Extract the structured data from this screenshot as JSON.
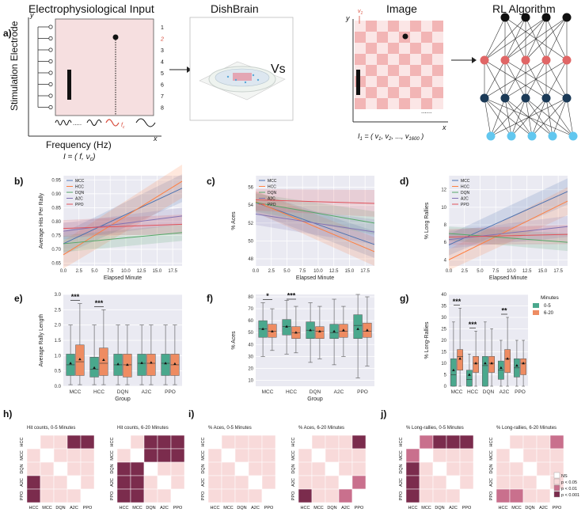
{
  "panel_a": {
    "label": "a)",
    "elec_title": "Electrophysiological Input",
    "ylabel": "Stimulation Electrode",
    "xlabel": "Frequency (Hz)",
    "formula": "I = ( f, ν",
    "formula_sub": "c",
    "formula_end": ")",
    "y_axis": "y",
    "x_axis": "x",
    "electrodes": [
      "1",
      "2",
      "3",
      "4",
      "5",
      "6",
      "7",
      "8"
    ],
    "highlight_electrode_index": 1,
    "fc_label": "f",
    "fc_sub": "c",
    "dish_title": "DishBrain",
    "vs": "Vs",
    "image_title": "Image",
    "v1_label": "v",
    "v1_sub": "1",
    "image_formula": "I",
    "image_formula_sub": "1",
    "image_formula_rest": " = ( v",
    "image_formula_v1": "1",
    "image_formula_mid": ", v",
    "image_formula_v2": "2",
    "image_formula_dots": ", ..., v",
    "image_formula_vn": "1600",
    "image_formula_end": " )",
    "rl_title": "RL Algorithm",
    "colors": {
      "pink_bg": "#f6dfe0",
      "node_red": "#e06666",
      "node_dark": "#1b3a57",
      "node_light": "#62c7ef",
      "check_dark": "#f2b5b5",
      "check_light": "#fbe6e6"
    }
  },
  "chart_data": [
    {
      "id": "b",
      "label": "b)",
      "type": "line",
      "xlabel": "Elapsed Minute",
      "ylabel": "Average Hits Per Rally",
      "xticks": [
        "0.0",
        "2.5",
        "5.0",
        "7.5",
        "10.0",
        "12.5",
        "15.0",
        "17.5"
      ],
      "xlim": [
        0,
        19
      ],
      "ylim": [
        0.64,
        0.965
      ],
      "yticks": [
        "0.65",
        "0.70",
        "0.75",
        "0.80",
        "0.85",
        "0.90",
        "0.95"
      ],
      "legend": [
        "MCC",
        "HCC",
        "DQN",
        "A2C",
        "PPO"
      ],
      "series": [
        {
          "name": "MCC",
          "color": "#4c72b0",
          "start": 0.72,
          "end": 0.92,
          "band0": 0.04,
          "band1": 0.05
        },
        {
          "name": "HCC",
          "color": "#ff7f40",
          "start": 0.68,
          "end": 0.945,
          "band0": 0.05,
          "band1": 0.06
        },
        {
          "name": "DQN",
          "color": "#55a868",
          "start": 0.72,
          "end": 0.76,
          "band0": 0.03,
          "band1": 0.03
        },
        {
          "name": "A2C",
          "color": "#8172b3",
          "start": 0.765,
          "end": 0.82,
          "band0": 0.03,
          "band1": 0.03
        },
        {
          "name": "PPO",
          "color": "#e0525b",
          "start": 0.775,
          "end": 0.79,
          "band0": 0.03,
          "band1": 0.035
        }
      ]
    },
    {
      "id": "c",
      "label": "c)",
      "type": "line",
      "xlabel": "Elapsed Minute",
      "ylabel": "% Aces",
      "xticks": [
        "0.0",
        "2.5",
        "5.0",
        "7.5",
        "10.0",
        "12.5",
        "15.0",
        "17.5"
      ],
      "xlim": [
        0,
        19
      ],
      "ylim": [
        47.2,
        57.3
      ],
      "yticks": [
        "48",
        "50",
        "52",
        "54",
        "56"
      ],
      "legend": [
        "MCC",
        "HCC",
        "DQN",
        "A2C",
        "PPO"
      ],
      "series": [
        {
          "name": "MCC",
          "color": "#4c72b0",
          "start": 54.3,
          "end": 49.6,
          "band0": 1.2,
          "band1": 1.5
        },
        {
          "name": "HCC",
          "color": "#ff7f40",
          "start": 54.4,
          "end": 48.8,
          "band0": 1.2,
          "band1": 1.6
        },
        {
          "name": "DQN",
          "color": "#55a868",
          "start": 54.3,
          "end": 52.0,
          "band0": 1.0,
          "band1": 1.3
        },
        {
          "name": "A2C",
          "color": "#8172b3",
          "start": 53.0,
          "end": 51.0,
          "band0": 1.2,
          "band1": 1.4
        },
        {
          "name": "PPO",
          "color": "#e0525b",
          "start": 54.6,
          "end": 54.2,
          "band0": 1.2,
          "band1": 1.5
        }
      ]
    },
    {
      "id": "d",
      "label": "d)",
      "type": "line",
      "xlabel": "Elapsed Minute",
      "ylabel": "% Long Rallies",
      "xticks": [
        "0.0",
        "2.5",
        "5.0",
        "7.5",
        "10.0",
        "12.5",
        "15.0",
        "17.5"
      ],
      "xlim": [
        0,
        19
      ],
      "ylim": [
        3.3,
        13.6
      ],
      "yticks": [
        "4",
        "6",
        "8",
        "10",
        "12"
      ],
      "legend": [
        "MCC",
        "HCC",
        "DQN",
        "A2C",
        "PPO"
      ],
      "series": [
        {
          "name": "MCC",
          "color": "#4c72b0",
          "start": 5.7,
          "end": 11.8,
          "band0": 1.2,
          "band1": 1.5
        },
        {
          "name": "HCC",
          "color": "#ff7f40",
          "start": 4.0,
          "end": 10.7,
          "band0": 1.2,
          "band1": 1.6
        },
        {
          "name": "DQN",
          "color": "#55a868",
          "start": 7.0,
          "end": 6.0,
          "band0": 0.8,
          "band1": 1.0
        },
        {
          "name": "A2C",
          "color": "#8172b3",
          "start": 6.3,
          "end": 7.8,
          "band0": 1.0,
          "band1": 1.2
        },
        {
          "name": "PPO",
          "color": "#e0525b",
          "start": 6.6,
          "end": 6.9,
          "band0": 0.9,
          "band1": 1.1
        }
      ]
    },
    {
      "id": "e",
      "label": "e)",
      "type": "box",
      "xlabel": "Group",
      "ylabel": "Average Rally Length",
      "categories": [
        "MCC",
        "HCC",
        "DQN",
        "A2C",
        "PPO"
      ],
      "ylim": [
        0,
        3.0
      ],
      "yticks": [
        "0.0",
        "0.5",
        "1.0",
        "1.5",
        "2.0",
        "2.5",
        "3.0"
      ],
      "boxes": [
        [
          [
            0.05,
            0.35,
            0.7,
            1.05,
            2.0,
            0.75
          ],
          [
            0.05,
            0.35,
            0.8,
            1.35,
            2.7,
            0.88
          ]
        ],
        [
          [
            0.05,
            0.3,
            0.55,
            0.95,
            2.0,
            0.6
          ],
          [
            0.05,
            0.35,
            0.75,
            1.25,
            2.5,
            0.86
          ]
        ],
        [
          [
            0.05,
            0.35,
            0.7,
            1.05,
            2.0,
            0.72
          ],
          [
            0.05,
            0.3,
            0.7,
            1.05,
            2.0,
            0.7
          ]
        ],
        [
          [
            0.05,
            0.35,
            0.75,
            1.05,
            2.0,
            0.76
          ],
          [
            0.05,
            0.35,
            0.75,
            1.05,
            2.0,
            0.77
          ]
        ],
        [
          [
            0.05,
            0.35,
            0.75,
            1.05,
            2.0,
            0.75
          ],
          [
            0.05,
            0.35,
            0.7,
            1.05,
            2.0,
            0.73
          ]
        ]
      ],
      "sig": [
        {
          "cat": 0,
          "text": "***"
        },
        {
          "cat": 1,
          "text": "***"
        }
      ],
      "legend_title": "",
      "legend": []
    },
    {
      "id": "f",
      "label": "f)",
      "type": "box",
      "xlabel": "Group",
      "ylabel": "% Aces",
      "categories": [
        "MCC",
        "HCC",
        "DQN",
        "A2C",
        "PPO"
      ],
      "ylim": [
        5,
        82
      ],
      "yticks": [
        "10",
        "20",
        "30",
        "40",
        "50",
        "60",
        "70",
        "80"
      ],
      "boxes": [
        [
          [
            30,
            46,
            53,
            60,
            75,
            53
          ],
          [
            35,
            46,
            51,
            57,
            70,
            51
          ]
        ],
        [
          [
            32,
            48,
            55,
            61,
            77,
            55
          ],
          [
            33,
            45,
            50,
            55,
            72,
            50
          ]
        ],
        [
          [
            25,
            45,
            52,
            59,
            75,
            52
          ],
          [
            28,
            45,
            51,
            55,
            72,
            51
          ]
        ],
        [
          [
            23,
            45,
            50,
            57,
            78,
            51
          ],
          [
            30,
            46,
            51,
            57,
            72,
            52
          ]
        ],
        [
          [
            12,
            45,
            56,
            65,
            82,
            53
          ],
          [
            22,
            46,
            51,
            58,
            80,
            52
          ]
        ]
      ],
      "sig": [
        {
          "cat": 0,
          "text": "*"
        },
        {
          "cat": 1,
          "text": "***"
        }
      ],
      "legend_title": "",
      "legend": []
    },
    {
      "id": "g",
      "label": "g)",
      "type": "box",
      "xlabel": "",
      "ylabel": "% Long-Rallies",
      "categories": [
        "MCC",
        "HCC",
        "DQN",
        "A2C",
        "PPO"
      ],
      "ylim": [
        0,
        40
      ],
      "yticks": [
        "0",
        "5",
        "10",
        "15",
        "20",
        "25",
        "30",
        "35",
        "40"
      ],
      "boxes": [
        [
          [
            0,
            0,
            5,
            12,
            28,
            7
          ],
          [
            0,
            7,
            13,
            16,
            34,
            12
          ]
        ],
        [
          [
            0,
            0,
            3,
            7,
            14,
            5
          ],
          [
            0,
            6,
            10,
            13,
            24,
            10
          ]
        ],
        [
          [
            0,
            0,
            9,
            13,
            28,
            10
          ],
          [
            0,
            6,
            10,
            13,
            25,
            10
          ]
        ],
        [
          [
            0,
            3,
            7,
            11,
            20,
            8
          ],
          [
            0,
            6,
            12,
            16,
            30,
            12
          ]
        ],
        [
          [
            0,
            4,
            8,
            12,
            20,
            9
          ],
          [
            0,
            5,
            10,
            12,
            20,
            10
          ]
        ]
      ],
      "sig": [
        {
          "cat": 0,
          "text": "***"
        },
        {
          "cat": 1,
          "text": "***"
        },
        {
          "cat": 3,
          "text": "**"
        }
      ],
      "legend_title": "Minutes",
      "legend": [
        "0-5",
        "6-20"
      ]
    }
  ],
  "box_colors": [
    "#4aa88d",
    "#ee8c62"
  ],
  "heatmaps": {
    "h_label": "h)",
    "i_label": "i)",
    "j_label": "j)",
    "sig_colors": [
      "#ffffff",
      "#f8dada",
      "#c9708d",
      "#7b2c4d"
    ],
    "legend": [
      "NS",
      "p < 0.05",
      "p < 0.01",
      "p < 0.001"
    ],
    "maps": [
      {
        "title": "Hit counts, 0-5 Minutes",
        "rows": [
          "HCC",
          "MCC",
          "DQN",
          "A2C",
          "PPO"
        ],
        "cols": [
          "HCC",
          "MCC",
          "DQN",
          "A2C",
          "PPO"
        ],
        "cells": [
          [
            0,
            1,
            1,
            3,
            3
          ],
          [
            1,
            0,
            1,
            1,
            1
          ],
          [
            1,
            1,
            0,
            1,
            1
          ],
          [
            3,
            1,
            1,
            0,
            1
          ],
          [
            3,
            1,
            1,
            1,
            0
          ]
        ]
      },
      {
        "title": "Hit counts, 6-20 Minutes",
        "rows": [
          "HCC",
          "MCC",
          "DQN",
          "A2C",
          "PPO"
        ],
        "cols": [
          "HCC",
          "MCC",
          "DQN",
          "A2C",
          "PPO"
        ],
        "cells": [
          [
            0,
            1,
            3,
            3,
            3
          ],
          [
            1,
            0,
            3,
            3,
            3
          ],
          [
            3,
            3,
            0,
            1,
            1
          ],
          [
            3,
            3,
            1,
            0,
            1
          ],
          [
            3,
            3,
            1,
            1,
            0
          ]
        ]
      },
      {
        "title": "% Aces, 0-5 Minutes",
        "rows": [
          "HCC",
          "MCC",
          "DQN",
          "A2C",
          "PPO"
        ],
        "cols": [
          "HCC",
          "MCC",
          "DQN",
          "A2C",
          "PPO"
        ],
        "cells": [
          [
            0,
            1,
            1,
            1,
            1
          ],
          [
            1,
            0,
            1,
            1,
            1
          ],
          [
            1,
            1,
            0,
            1,
            1
          ],
          [
            1,
            1,
            1,
            0,
            1
          ],
          [
            1,
            1,
            1,
            1,
            0
          ]
        ]
      },
      {
        "title": "% Aces, 6-20 Minutes",
        "rows": [
          "HCC",
          "MCC",
          "DQN",
          "A2C",
          "PPO"
        ],
        "cols": [
          "HCC",
          "MCC",
          "DQN",
          "A2C",
          "PPO"
        ],
        "cells": [
          [
            0,
            1,
            1,
            1,
            3
          ],
          [
            1,
            0,
            1,
            1,
            1
          ],
          [
            1,
            1,
            0,
            1,
            1
          ],
          [
            1,
            1,
            1,
            0,
            2
          ],
          [
            3,
            1,
            1,
            2,
            0
          ]
        ]
      },
      {
        "title": "% Long-rallies, 0-5 Minutes",
        "rows": [
          "HCC",
          "MCC",
          "DQN",
          "A2C",
          "PPO"
        ],
        "cols": [
          "HCC",
          "MCC",
          "DQN",
          "A2C",
          "PPO"
        ],
        "cells": [
          [
            0,
            2,
            3,
            3,
            3
          ],
          [
            2,
            0,
            1,
            1,
            1
          ],
          [
            3,
            1,
            0,
            1,
            1
          ],
          [
            3,
            1,
            1,
            0,
            1
          ],
          [
            3,
            1,
            1,
            1,
            0
          ]
        ]
      },
      {
        "title": "% Long-rallies, 6-20 Minutes",
        "rows": [
          "HCC",
          "MCC",
          "DQN",
          "A2C",
          "PPO"
        ],
        "cols": [
          "HCC",
          "MCC",
          "DQN",
          "A2C",
          "PPO"
        ],
        "cells": [
          [
            0,
            1,
            1,
            1,
            2
          ],
          [
            1,
            0,
            1,
            1,
            1
          ],
          [
            1,
            1,
            0,
            1,
            1
          ],
          [
            1,
            1,
            1,
            0,
            1
          ],
          [
            2,
            2,
            1,
            1,
            0
          ]
        ]
      }
    ]
  }
}
